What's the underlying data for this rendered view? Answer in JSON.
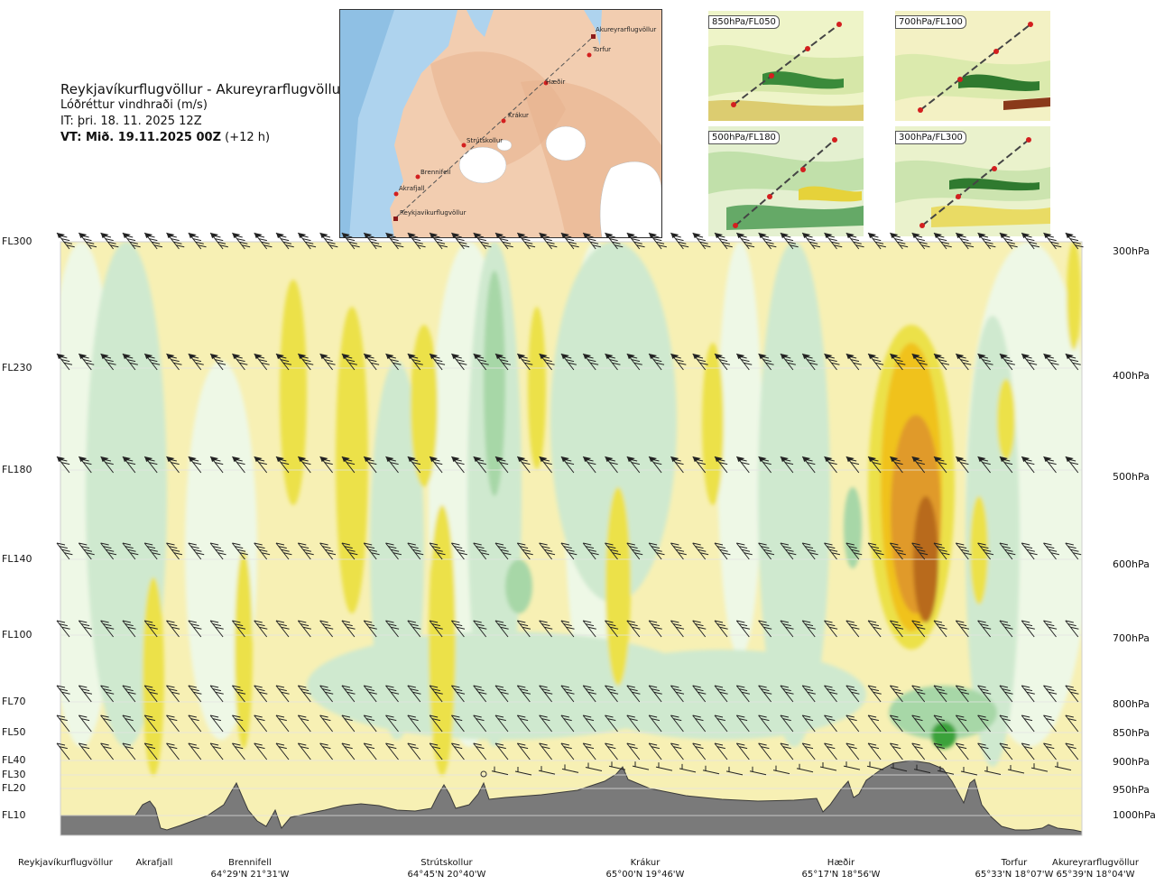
{
  "header": {
    "route": "Reykjavíkurflugvöllur - Akureyrarflugvöllur",
    "field": "Lóðréttur vindhraði (m/s)",
    "issue_time": "IT: þri. 18. 11. 2025 12Z",
    "valid_prefix": "VT: Mið. 19.11.2025 00Z",
    "valid_suffix": "(+12 h)"
  },
  "map": {
    "labels": [
      "Akureyrarflugvöllur",
      "Torfur",
      "Hæðir",
      "Krákur",
      "Strútskollur",
      "Brennifell",
      "Akrafjall",
      "Reykjavíkurflugvöllur"
    ]
  },
  "insets": [
    {
      "label": "850hPa/FL050"
    },
    {
      "label": "700hPa/FL100"
    },
    {
      "label": "500hPa/FL180"
    },
    {
      "label": "300hPa/FL300"
    }
  ],
  "chart_data": {
    "type": "heatmap",
    "flight_levels": [
      "FL300",
      "FL230",
      "FL180",
      "FL140",
      "FL100",
      "FL70",
      "FL50",
      "FL40",
      "FL30",
      "FL20",
      "FL10"
    ],
    "pressure_levels": [
      "300hPa",
      "400hPa",
      "500hPa",
      "600hPa",
      "700hPa",
      "800hPa",
      "850hPa",
      "900hPa",
      "950hPa",
      "1000hPa"
    ],
    "waypoints": [
      {
        "name": "Reykjavíkurflugvöllur",
        "coord": ""
      },
      {
        "name": "Akrafjall",
        "coord": ""
      },
      {
        "name": "Brennifell",
        "coord": "64°29'N 21°31'W"
      },
      {
        "name": "Strútskollur",
        "coord": "64°45'N 20°40'W"
      },
      {
        "name": "Krákur",
        "coord": "65°00'N 19°46'W"
      },
      {
        "name": "Hæðir",
        "coord": "65°17'N 18°56'W"
      },
      {
        "name": "Torfur",
        "coord": "65°33'N 18°07'W"
      },
      {
        "name": "Akureyrarflugvöllur",
        "coord": "65°39'N 18°04'W"
      }
    ],
    "colors": {
      "strong_down_1": "#a7d7a7",
      "strong_down_2": "#3aa23a",
      "down": "#cfe9cf",
      "weak_down": "#eef8e6",
      "weak_up": "#f7f0b4",
      "up": "#ece14a",
      "up_2": "#f0c21a",
      "up_3": "#e09a2a",
      "up_4": "#b86a1f",
      "terrain": "#7a7a7a"
    }
  }
}
